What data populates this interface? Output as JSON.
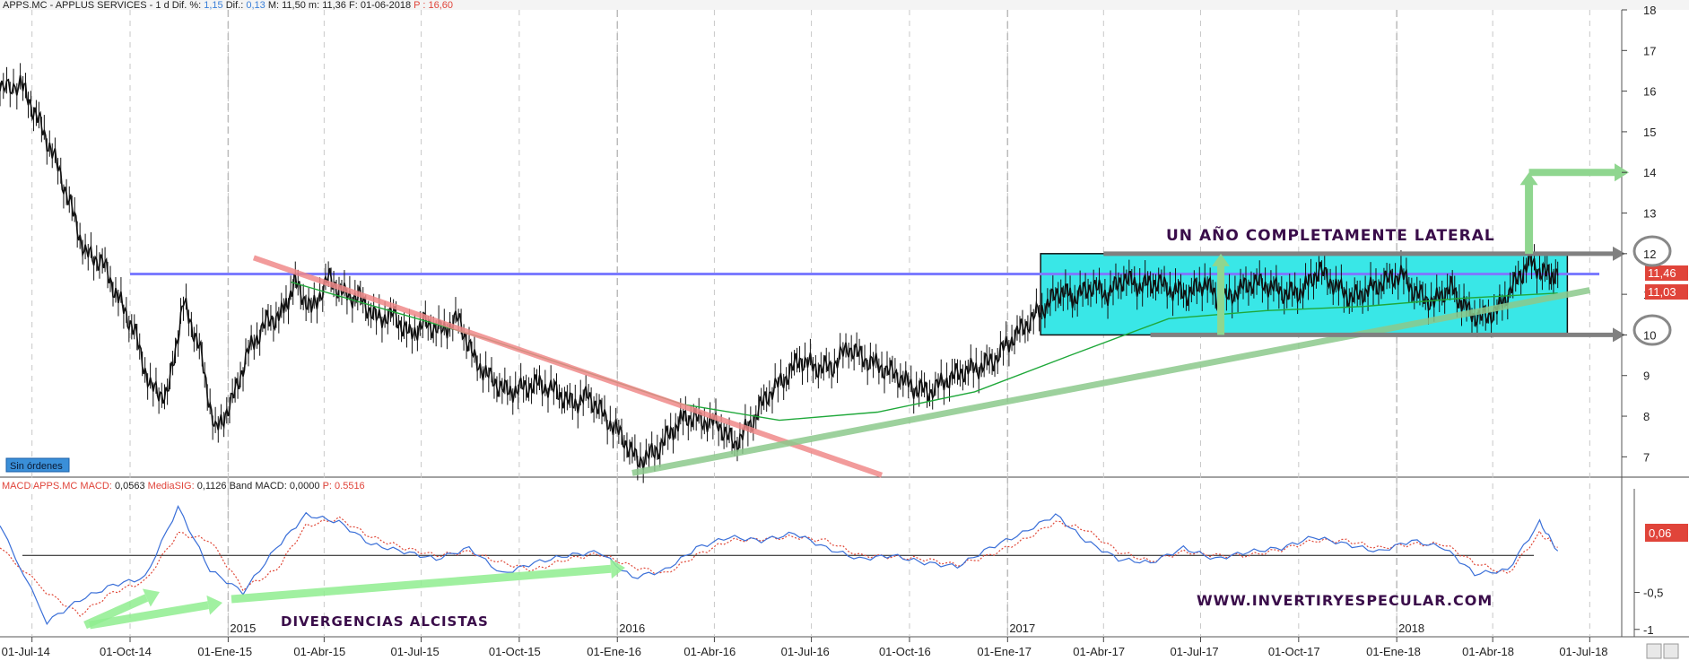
{
  "header": {
    "symbol": "APPS.MC",
    "name": "APPLUS SERVICES",
    "period": "1 d",
    "dif_pct_label": "Dif. %:",
    "dif_pct": "1,15",
    "dif_label": "Dif.:",
    "dif": "0,13",
    "max_label": "M:",
    "max": "11,50",
    "min_label": "m:",
    "min": "11,36",
    "date_label": "F:",
    "date": "01-06-2018",
    "price_label": "P :",
    "price": "16,60"
  },
  "status_badge": "Sin órdenes",
  "macd_header": {
    "title": "MACD APPS.MC",
    "macd_label": "MACD:",
    "macd": "0,0563",
    "sig_label": "MediaSIG:",
    "sig": "0,1126",
    "band_label": "Band MACD:",
    "band": "0,0000",
    "p_label": "P:",
    "p": "0.5516"
  },
  "annotations": {
    "lateral": "UN AÑO COMPLETAMENTE LATERAL",
    "website": "WWW.INVERTIRYESPECULAR.COM",
    "divergences": "DIVERGENCIAS ALCISTAS"
  },
  "price_tags": {
    "last": "11,46",
    "ma": "11,03",
    "macd_tag": "0,06"
  },
  "colors": {
    "candles": "#111111",
    "ma": "#1fa83a",
    "resistance": "#7b7bff",
    "downtrend": "#f08a8a",
    "uptrend": "#8cc98c",
    "channel_fill": "#39e7e7",
    "arrow": "#8fd68f",
    "macd_line": "#3a6fd8",
    "signal_line": "#e04a3a",
    "tag_red": "#e0443a",
    "grid": "#c8c8c8"
  },
  "chart_data": [
    {
      "type": "candlestick",
      "title": "APPS.MC - APPLUS SERVICES",
      "y_range": [
        6.5,
        18
      ],
      "y_ticks": [
        "7",
        "8",
        "9",
        "10",
        "11",
        "12",
        "13",
        "14",
        "15",
        "16",
        "17",
        "18"
      ],
      "x_ticks": [
        "01-Jul-14",
        "01-Oct-14",
        "01-Ene-15",
        "01-Abr-15",
        "01-Jul-15",
        "01-Oct-15",
        "01-Ene-16",
        "01-Abr-16",
        "01-Jul-16",
        "01-Oct-16",
        "01-Ene-17",
        "01-Abr-17",
        "01-Jul-17",
        "01-Oct-17",
        "01-Ene-18",
        "01-Abr-18",
        "01-Jul-18"
      ],
      "year_labels": [
        "2015",
        "2016",
        "2017",
        "2018"
      ],
      "x_range": [
        "2014-06-01",
        "2018-07-31"
      ],
      "series": [
        {
          "name": "close",
          "x": [
            "2014-06-01",
            "2014-06-20",
            "2014-07-05",
            "2014-07-20",
            "2014-08-05",
            "2014-08-20",
            "2014-09-05",
            "2014-09-20",
            "2014-10-05",
            "2014-10-20",
            "2014-11-05",
            "2014-11-20",
            "2014-12-05",
            "2014-12-20",
            "2015-01-05",
            "2015-01-20",
            "2015-02-05",
            "2015-02-20",
            "2015-03-05",
            "2015-03-20",
            "2015-04-05",
            "2015-04-20",
            "2015-05-05",
            "2015-05-20",
            "2015-06-05",
            "2015-06-20",
            "2015-07-05",
            "2015-07-20",
            "2015-08-05",
            "2015-08-20",
            "2015-09-05",
            "2015-09-20",
            "2015-10-05",
            "2015-10-20",
            "2015-11-05",
            "2015-11-20",
            "2015-12-05",
            "2015-12-20",
            "2016-01-05",
            "2016-01-20",
            "2016-02-05",
            "2016-02-20",
            "2016-03-05",
            "2016-03-20",
            "2016-04-05",
            "2016-04-20",
            "2016-05-05",
            "2016-05-20",
            "2016-06-05",
            "2016-06-20",
            "2016-07-05",
            "2016-07-20",
            "2016-08-05",
            "2016-08-20",
            "2016-09-05",
            "2016-09-20",
            "2016-10-05",
            "2016-10-20",
            "2016-11-05",
            "2016-11-20",
            "2016-12-05",
            "2016-12-20",
            "2017-01-05",
            "2017-01-20",
            "2017-02-05",
            "2017-02-20",
            "2017-03-05",
            "2017-03-20",
            "2017-04-05",
            "2017-04-20",
            "2017-05-05",
            "2017-05-20",
            "2017-06-05",
            "2017-06-20",
            "2017-07-05",
            "2017-07-20",
            "2017-08-05",
            "2017-08-20",
            "2017-09-05",
            "2017-09-20",
            "2017-10-05",
            "2017-10-20",
            "2017-11-05",
            "2017-11-20",
            "2017-12-05",
            "2017-12-20",
            "2018-01-05",
            "2018-01-20",
            "2018-02-05",
            "2018-02-20",
            "2018-03-05",
            "2018-03-20",
            "2018-04-05",
            "2018-04-20",
            "2018-05-05",
            "2018-05-20",
            "2018-06-01"
          ],
          "y": [
            16.0,
            16.2,
            15.4,
            14.5,
            13.3,
            12.0,
            11.8,
            10.9,
            10.1,
            8.7,
            8.5,
            10.8,
            9.7,
            7.6,
            8.4,
            9.6,
            10.3,
            10.5,
            11.3,
            10.6,
            11.4,
            11.0,
            10.9,
            10.4,
            10.5,
            10.0,
            10.3,
            10.1,
            10.4,
            9.4,
            8.9,
            8.6,
            8.7,
            8.8,
            8.6,
            8.3,
            8.5,
            8.0,
            7.5,
            6.9,
            7.1,
            7.6,
            8.0,
            7.9,
            7.8,
            7.3,
            7.8,
            8.5,
            8.9,
            9.4,
            9.2,
            9.2,
            9.7,
            9.4,
            9.2,
            9.0,
            8.7,
            8.6,
            8.9,
            9.1,
            9.2,
            9.4,
            9.9,
            10.3,
            10.7,
            11.1,
            10.9,
            11.2,
            11.0,
            11.4,
            11.2,
            11.3,
            11.1,
            11.0,
            11.3,
            10.8,
            11.1,
            11.3,
            11.2,
            11.0,
            11.1,
            11.6,
            11.2,
            10.9,
            11.1,
            11.3,
            11.5,
            11.0,
            10.8,
            11.2,
            10.7,
            10.4,
            10.6,
            11.2,
            11.8,
            11.5,
            11.46
          ]
        },
        {
          "name": "ma",
          "x": [
            "2015-03-01",
            "2015-06-01",
            "2015-09-01",
            "2015-12-01",
            "2016-03-01",
            "2016-06-01",
            "2016-09-01",
            "2016-12-01",
            "2017-03-01",
            "2017-06-01",
            "2017-09-01",
            "2017-12-01",
            "2018-03-01",
            "2018-06-01"
          ],
          "y": [
            11.3,
            10.6,
            9.9,
            9.1,
            8.3,
            7.9,
            8.1,
            8.6,
            9.5,
            10.4,
            10.6,
            10.7,
            10.9,
            11.03
          ]
        }
      ],
      "levels": {
        "resistance": 11.5,
        "channel_top": 12.0,
        "channel_bottom": 10.0,
        "target": 14.0
      }
    },
    {
      "type": "line",
      "title": "MACD APPS.MC",
      "y_range": [
        -1.1,
        0.9
      ],
      "y_ticks": [
        "-0,5",
        "-1"
      ],
      "zero_line": 0,
      "series": [
        {
          "name": "MACD",
          "x": [
            "2014-06-01",
            "2014-07-15",
            "2014-08-15",
            "2014-09-15",
            "2014-10-15",
            "2014-11-15",
            "2014-12-15",
            "2015-01-15",
            "2015-02-15",
            "2015-03-15",
            "2015-04-15",
            "2015-05-15",
            "2015-06-15",
            "2015-07-15",
            "2015-08-15",
            "2015-09-15",
            "2015-10-15",
            "2015-11-15",
            "2015-12-15",
            "2016-01-15",
            "2016-02-15",
            "2016-03-15",
            "2016-04-15",
            "2016-05-15",
            "2016-06-15",
            "2016-07-15",
            "2016-08-15",
            "2016-09-15",
            "2016-10-15",
            "2016-11-15",
            "2016-12-15",
            "2017-01-15",
            "2017-02-15",
            "2017-03-15",
            "2017-04-15",
            "2017-05-15",
            "2017-06-15",
            "2017-07-15",
            "2017-08-15",
            "2017-09-15",
            "2017-10-15",
            "2017-11-15",
            "2017-12-15",
            "2018-01-15",
            "2018-02-15",
            "2018-03-15",
            "2018-04-15",
            "2018-05-15",
            "2018-06-01"
          ],
          "y": [
            0.4,
            -0.9,
            -0.6,
            -0.4,
            -0.3,
            0.65,
            -0.2,
            -0.5,
            0.1,
            0.55,
            0.45,
            0.15,
            0.05,
            -0.05,
            0.1,
            -0.25,
            -0.1,
            0.0,
            0.05,
            -0.3,
            -0.2,
            0.1,
            0.25,
            0.2,
            0.3,
            0.1,
            -0.05,
            0.0,
            -0.1,
            -0.15,
            0.1,
            0.3,
            0.55,
            0.2,
            -0.05,
            -0.1,
            0.1,
            -0.05,
            0.05,
            0.1,
            0.25,
            0.15,
            0.05,
            0.2,
            0.1,
            -0.25,
            -0.2,
            0.45,
            0.06
          ]
        },
        {
          "name": "MediaSIG",
          "x": [
            "2014-06-01",
            "2014-07-15",
            "2014-08-15",
            "2014-09-15",
            "2014-10-15",
            "2014-11-15",
            "2014-12-15",
            "2015-01-15",
            "2015-02-15",
            "2015-03-15",
            "2015-04-15",
            "2015-05-15",
            "2015-06-15",
            "2015-07-15",
            "2015-08-15",
            "2015-09-15",
            "2015-10-15",
            "2015-11-15",
            "2015-12-15",
            "2016-01-15",
            "2016-02-15",
            "2016-03-15",
            "2016-04-15",
            "2016-05-15",
            "2016-06-15",
            "2016-07-15",
            "2016-08-15",
            "2016-09-15",
            "2016-10-15",
            "2016-11-15",
            "2016-12-15",
            "2017-01-15",
            "2017-02-15",
            "2017-03-15",
            "2017-04-15",
            "2017-05-15",
            "2017-06-15",
            "2017-07-15",
            "2017-08-15",
            "2017-09-15",
            "2017-10-15",
            "2017-11-15",
            "2017-12-15",
            "2018-01-15",
            "2018-02-15",
            "2018-03-15",
            "2018-04-15",
            "2018-05-15",
            "2018-06-01"
          ],
          "y": [
            0.1,
            -0.5,
            -0.8,
            -0.5,
            -0.35,
            0.3,
            0.2,
            -0.45,
            -0.2,
            0.4,
            0.5,
            0.25,
            0.1,
            0.0,
            0.05,
            -0.1,
            -0.2,
            -0.05,
            0.02,
            -0.15,
            -0.25,
            0.0,
            0.2,
            0.22,
            0.25,
            0.2,
            0.0,
            -0.02,
            -0.05,
            -0.13,
            0.0,
            0.2,
            0.45,
            0.35,
            0.05,
            -0.08,
            0.05,
            0.0,
            0.0,
            0.08,
            0.2,
            0.2,
            0.1,
            0.15,
            0.15,
            -0.1,
            -0.25,
            0.3,
            0.11
          ]
        }
      ]
    }
  ]
}
